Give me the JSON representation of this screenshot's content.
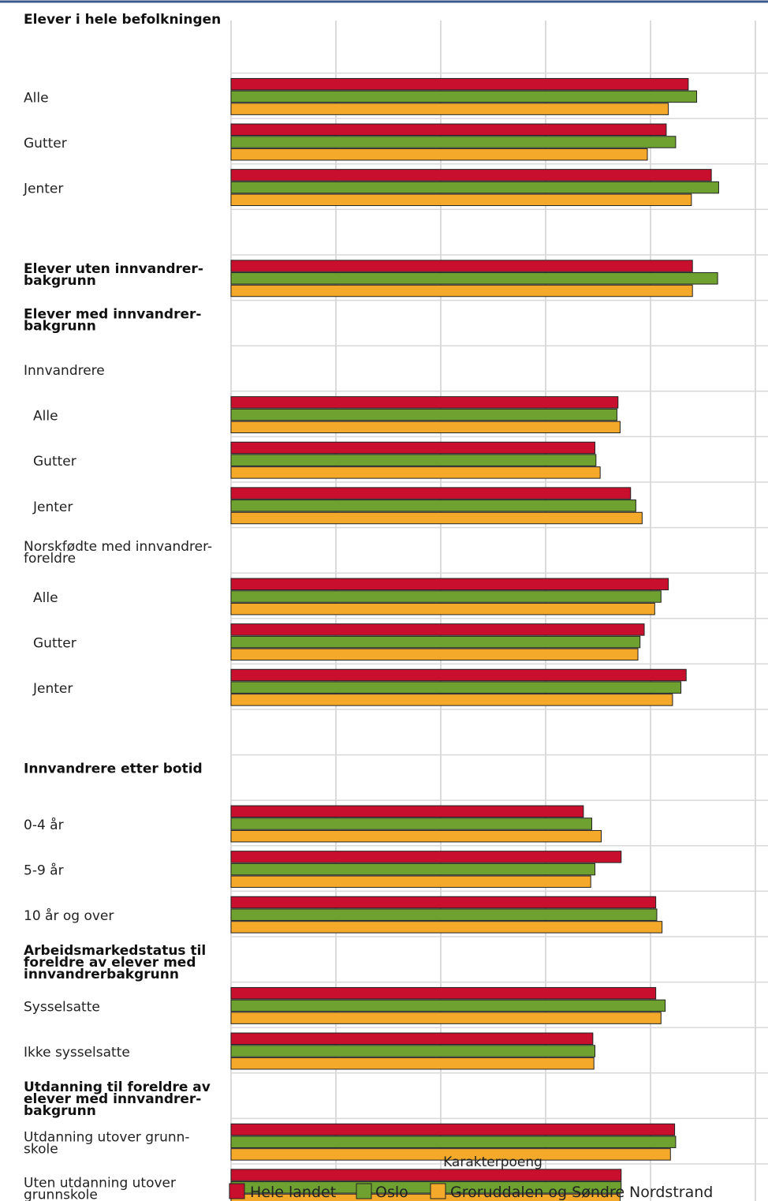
{
  "chart_data": {
    "type": "bar",
    "orientation": "horizontal",
    "xlabel": "Karakterpoeng",
    "xlim": [
      0,
      50
    ],
    "xticks": [
      0,
      10,
      20,
      30,
      40,
      50
    ],
    "grid": true,
    "legend_position": "bottom",
    "series": [
      {
        "name": "Hele landet",
        "color": "#c8102e"
      },
      {
        "name": "Oslo",
        "color": "#6ea12f"
      },
      {
        "name": "Groruddalen og Søndre Nordstrand",
        "color": "#f4a92a"
      }
    ],
    "rows": [
      {
        "label": "Elever i hele befolkningen",
        "header": true,
        "indent": 0
      },
      {
        "label": "Alle",
        "indent": 0,
        "values": [
          43.6,
          44.4,
          41.7
        ]
      },
      {
        "label": "Gutter",
        "indent": 0,
        "values": [
          41.5,
          42.4,
          39.7
        ]
      },
      {
        "label": "Jenter",
        "indent": 0,
        "values": [
          45.8,
          46.5,
          43.9
        ]
      },
      {
        "label": "",
        "indent": 0
      },
      {
        "label": "Elever uten innvandrer-\nbakgrunn",
        "header": true,
        "indent": 0,
        "values": [
          44.0,
          46.4,
          44.0
        ]
      },
      {
        "label": "Elever med innvandrer-\nbakgrunn",
        "header": true,
        "indent": 0
      },
      {
        "label": "Innvandrere",
        "indent": 0
      },
      {
        "label": "Alle",
        "indent": 1,
        "values": [
          36.9,
          36.8,
          37.1
        ]
      },
      {
        "label": "Gutter",
        "indent": 1,
        "values": [
          34.7,
          34.8,
          35.2
        ]
      },
      {
        "label": "Jenter",
        "indent": 1,
        "values": [
          38.1,
          38.6,
          39.2
        ]
      },
      {
        "label": "Norskfødte med innvandrer-\nforeldre",
        "indent": 0
      },
      {
        "label": "Alle",
        "indent": 1,
        "values": [
          41.7,
          41.0,
          40.4
        ]
      },
      {
        "label": "Gutter",
        "indent": 1,
        "values": [
          39.4,
          39.0,
          38.8
        ]
      },
      {
        "label": "Jenter",
        "indent": 1,
        "values": [
          43.4,
          42.9,
          42.1
        ]
      },
      {
        "label": "",
        "indent": 0
      },
      {
        "label": "Innvandrere etter botid",
        "header": true,
        "indent": 0
      },
      {
        "label": "0-4 år",
        "indent": 0,
        "values": [
          33.6,
          34.4,
          35.3
        ]
      },
      {
        "label": "5-9 år",
        "indent": 0,
        "values": [
          37.2,
          34.7,
          34.3
        ]
      },
      {
        "label": "10 år og over",
        "indent": 0,
        "values": [
          40.5,
          40.6,
          41.1
        ]
      },
      {
        "label": "Arbeidsmarkedstatus til\nforeldre av elever med\ninnvandrerbakgrunn",
        "header": true,
        "indent": 0
      },
      {
        "label": "Sysselsatte",
        "indent": 0,
        "values": [
          40.5,
          41.4,
          41.0
        ]
      },
      {
        "label": "Ikke sysselsatte",
        "indent": 0,
        "values": [
          34.5,
          34.7,
          34.6
        ]
      },
      {
        "label": "Utdanning til foreldre av\nelever med innvandrer-\nbakgrunn",
        "header": true,
        "indent": 0
      },
      {
        "label": "Utdanning utover grunn-\nskole",
        "indent": 0,
        "values": [
          42.3,
          42.4,
          41.9
        ]
      },
      {
        "label": "Uten utdanning utover\ngrunnskole",
        "indent": 0,
        "values": [
          37.2,
          37.2,
          37.1
        ]
      }
    ]
  }
}
